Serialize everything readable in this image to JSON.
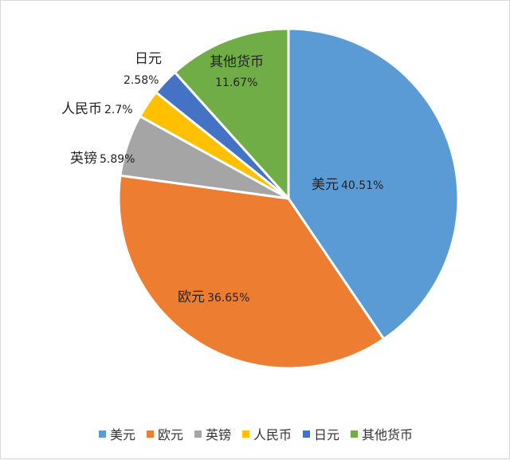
{
  "chart_data": {
    "type": "pie",
    "title": "",
    "legend_position": "bottom",
    "slices": [
      {
        "name": "美元",
        "value": 40.51,
        "label": "40.51%",
        "color": "#5b9bd5"
      },
      {
        "name": "欧元",
        "value": 36.65,
        "label": "36.65%",
        "color": "#ed7d31"
      },
      {
        "name": "英镑",
        "value": 5.89,
        "label": "5.89%",
        "color": "#a5a5a5"
      },
      {
        "name": "人民币",
        "value": 2.7,
        "label": "2.7%",
        "color": "#ffc000"
      },
      {
        "name": "日元",
        "value": 2.58,
        "label": "2.58%",
        "color": "#4472c4"
      },
      {
        "name": "其他货币",
        "value": 11.67,
        "label": "11.67%",
        "color": "#70ad47"
      }
    ]
  }
}
